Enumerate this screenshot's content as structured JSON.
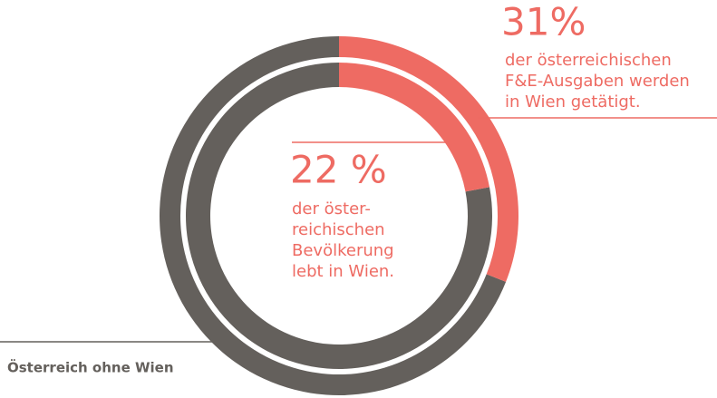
{
  "chart_data": {
    "type": "donut",
    "rings": [
      {
        "segments": [
          {
            "value": 31,
            "value_label": "31%",
            "color": "#ee6b63",
            "caption": [
              "der österreichischen",
              "F&E-Ausgaben werden",
              "in Wien getätigt."
            ]
          },
          {
            "value": 69,
            "color": "#64605c"
          }
        ]
      },
      {
        "segments": [
          {
            "value": 22,
            "value_label": "22 %",
            "color": "#ee6b63",
            "caption": [
              "der öster-",
              "reichischen",
              "Bevölkerung",
              "lebt in Wien."
            ]
          },
          {
            "value": 78,
            "color": "#64605c"
          }
        ]
      }
    ],
    "legend_label": "Österreich ohne Wien"
  }
}
